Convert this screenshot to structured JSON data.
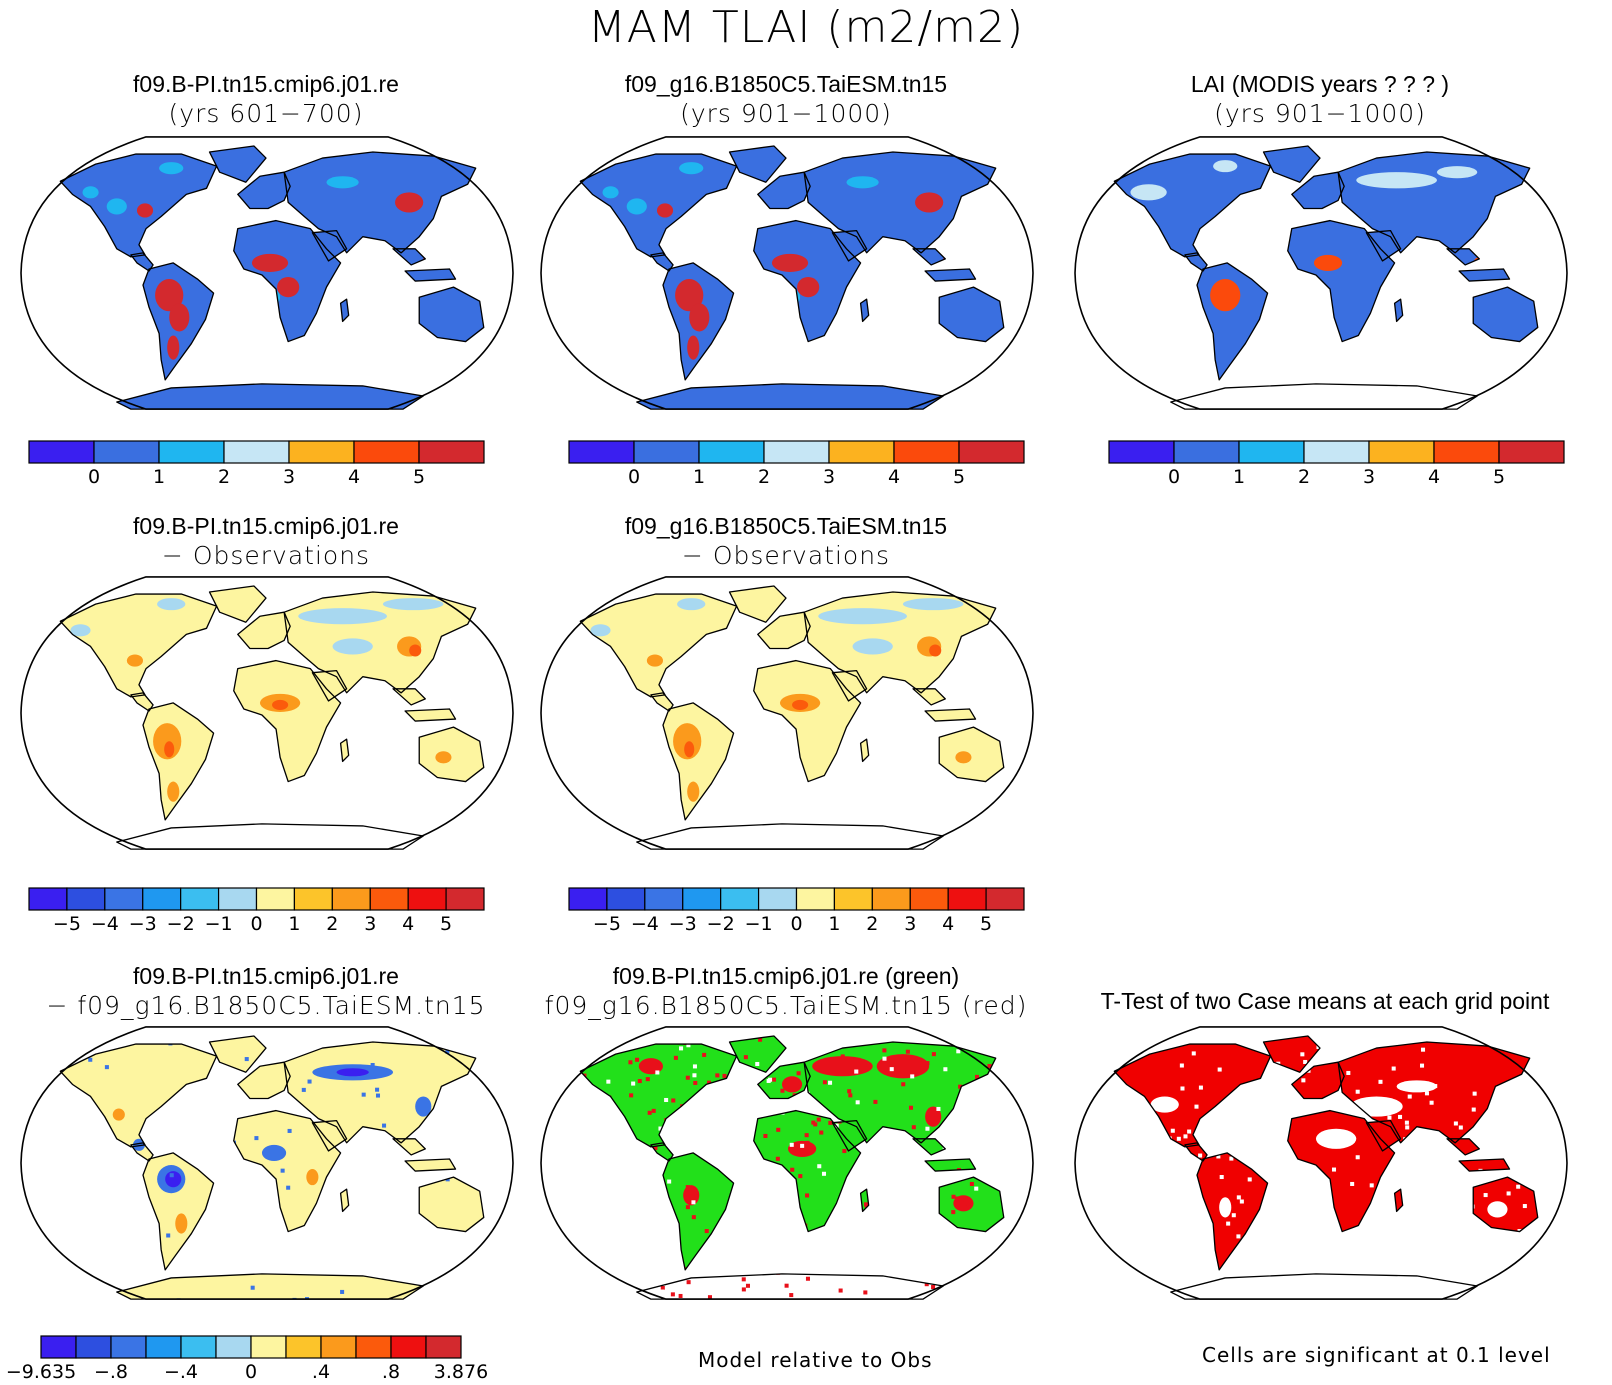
{
  "figure": {
    "title": "MAM TLAI (m2/m2)"
  },
  "panels": {
    "p1": {
      "title1": "f09.B-PI.tn15.cmip6.j01.re",
      "title2": "(yrs 601−700)"
    },
    "p2": {
      "title1": "f09_g16.B1850C5.TaiESM.tn15",
      "title2": "(yrs 901−1000)"
    },
    "p3": {
      "title1": "LAI (MODIS years ? ? ? )",
      "title2": "(yrs 901−1000)"
    },
    "p4": {
      "title1": "f09.B-PI.tn15.cmip6.j01.re",
      "title2": "− Observations"
    },
    "p5": {
      "title1": "f09_g16.B1850C5.TaiESM.tn15",
      "title2": "− Observations"
    },
    "p6": {
      "title1": "f09.B-PI.tn15.cmip6.j01.re",
      "title2": "− f09_g16.B1850C5.TaiESM.tn15"
    },
    "p7": {
      "title1": "f09.B-PI.tn15.cmip6.j01.re (green)",
      "title2": "f09_g16.B1850C5.TaiESM.tn15 (red)"
    },
    "p8": {
      "title1": "T-Test of two Case means at each grid point",
      "title2": ""
    }
  },
  "captions": {
    "middle": "Model relative to Obs",
    "right": "Cells are significant at 0.1 level"
  },
  "colorbars": {
    "absolute": {
      "colors": [
        "#3a1ff0",
        "#3a6fe0",
        "#1fb6f0",
        "#c6e6f5",
        "#fcb21f",
        "#fb4a0c",
        "#d3292e"
      ],
      "labels": [
        "0",
        "1",
        "2",
        "3",
        "4",
        "5"
      ]
    },
    "difference": {
      "colors": [
        "#3a1ff0",
        "#2d4fe0",
        "#3a74e5",
        "#1f98f0",
        "#3bbef0",
        "#a8d8f0",
        "#fdf5a0",
        "#fcc42a",
        "#fb9a1c",
        "#fb5a0c",
        "#ee1010",
        "#d3292e"
      ],
      "labels": [
        "−5",
        "−4",
        "−3",
        "−2",
        "−1",
        "0",
        "1",
        "2",
        "3",
        "4",
        "5"
      ]
    },
    "casediff": {
      "colors": [
        "#3a1ff0",
        "#2d4fe0",
        "#3a74e5",
        "#1f98f0",
        "#3bbef0",
        "#a8d8f0",
        "#fdf5a0",
        "#fcc42a",
        "#fb9a1c",
        "#fb5a0c",
        "#ee1010",
        "#d3292e"
      ],
      "labels": [
        "−9.635",
        "−.8",
        "−.4",
        "0",
        ".4",
        ".8",
        "3.876"
      ]
    }
  },
  "map_colors": {
    "ocean": "#ffffff",
    "coast": "#000000",
    "abs_land": "#3a6fe0",
    "abs_tropics": "#d3292e",
    "abs_obs_tropics": "#fb4a0c",
    "diff_land": "#fdf5a0",
    "diff_hot": "#fb9a1c",
    "diff_cold": "#a8d8f0",
    "case_land": "#fdf5a0",
    "case_neg": "#3a74e5",
    "green": "#22e01a",
    "red": "#e8101a",
    "sig": "#f00000"
  }
}
